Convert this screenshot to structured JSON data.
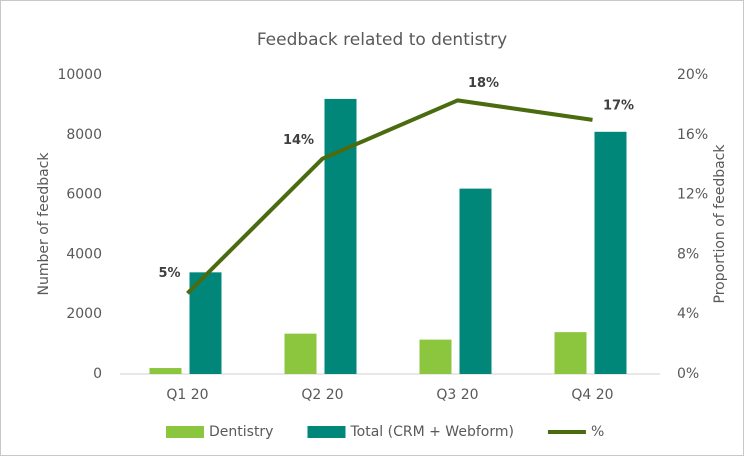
{
  "chart_data": {
    "type": "bar_line",
    "title": "Feedback related to dentistry",
    "y_label": "Number of feedback",
    "y2_label": "Proportion of feedback",
    "categories": [
      "Q1 20",
      "Q2 20",
      "Q3 20",
      "Q4 20"
    ],
    "series": [
      {
        "name": "Dentistry",
        "type": "bar",
        "color": "#8cc63e",
        "values": [
          200,
          1350,
          1150,
          1400
        ]
      },
      {
        "name": "Total (CRM + Webform)",
        "type": "bar",
        "color": "#00877a",
        "values": [
          3400,
          9200,
          6200,
          8100
        ]
      },
      {
        "name": "%",
        "type": "line",
        "axis": "y2",
        "color": "#4a6b10",
        "values": [
          5.4,
          14.4,
          18.3,
          17.0
        ],
        "value_labels": [
          "5%",
          "14%",
          "18%",
          "17%"
        ]
      }
    ],
    "ylim": [
      0,
      10000
    ],
    "yticks": [
      0,
      2000,
      4000,
      6000,
      8000,
      10000
    ],
    "y2lim": [
      0,
      20
    ],
    "y2ticks": [
      {
        "value": 0,
        "label": "0%"
      },
      {
        "value": 4,
        "label": "4%"
      },
      {
        "value": 8,
        "label": "8%"
      },
      {
        "value": 12,
        "label": "12%"
      },
      {
        "value": 16,
        "label": "16%"
      },
      {
        "value": 20,
        "label": "20%"
      }
    ],
    "legend": "bottom",
    "grid": false
  }
}
